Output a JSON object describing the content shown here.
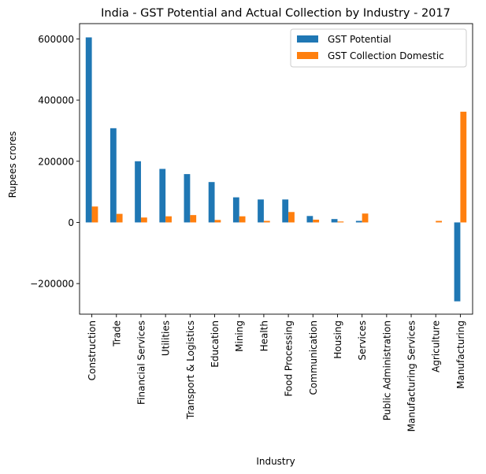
{
  "chart_data": {
    "type": "bar",
    "title": "India - GST Potential and Actual Collection by Industry - 2017",
    "xlabel": "Industry",
    "ylabel": "Rupees crores",
    "ylim": [
      -300000,
      650000
    ],
    "yticks": [
      -200000,
      0,
      200000,
      400000,
      600000
    ],
    "ytick_labels": [
      "−200000",
      "0",
      "200000",
      "400000",
      "600000"
    ],
    "grid": false,
    "legend_position": "top-right",
    "categories": [
      "Construction",
      "Trade",
      "Financial Services",
      "Utilities",
      "Transport & Logistics",
      "Education",
      "Mining",
      "Health",
      "Food Processing",
      "Communication",
      "Housing",
      "Services",
      "Public Administration",
      "Manufacturing Services",
      "Agriculture",
      "Manufacturing"
    ],
    "series": [
      {
        "name": "GST Potential",
        "color": "#1f77b4",
        "values": [
          605000,
          308000,
          200000,
          175000,
          158000,
          132000,
          82000,
          75000,
          75000,
          21000,
          11000,
          5000,
          0,
          0,
          0,
          -258000
        ]
      },
      {
        "name": "GST Collection Domestic",
        "color": "#ff7f0e",
        "values": [
          52000,
          28000,
          16000,
          20000,
          24000,
          8000,
          20000,
          5000,
          34000,
          9000,
          3000,
          29000,
          0,
          0,
          5000,
          362000
        ]
      }
    ]
  }
}
